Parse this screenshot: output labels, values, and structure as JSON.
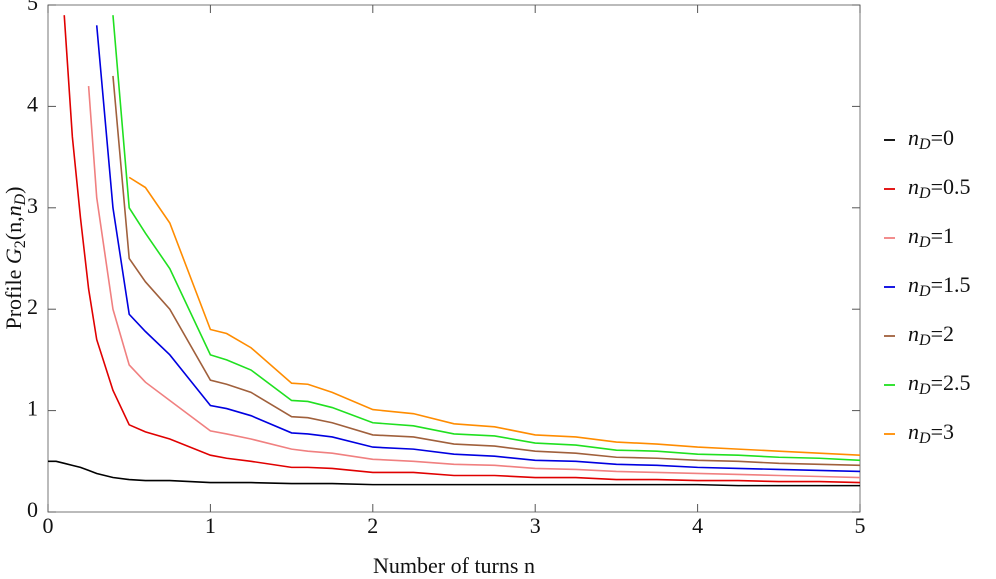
{
  "chart_data": {
    "type": "line",
    "xlabel": "Number of turns n",
    "ylabel": "Profile G2(n,nD)",
    "xlim": [
      0,
      5
    ],
    "ylim": [
      0,
      5
    ],
    "xticks": [
      0,
      1,
      2,
      3,
      4,
      5
    ],
    "yticks": [
      0,
      1,
      2,
      3,
      4,
      5
    ],
    "grid": false,
    "legend": "right",
    "x": [
      0,
      0.05,
      0.1,
      0.15,
      0.2,
      0.25,
      0.3,
      0.4,
      0.5,
      0.6,
      0.75,
      1,
      1.1,
      1.25,
      1.5,
      1.6,
      1.75,
      2,
      2.25,
      2.5,
      2.75,
      3,
      3.25,
      3.5,
      3.75,
      4,
      4.25,
      4.5,
      4.75,
      5
    ],
    "series": [
      {
        "name": "nD=0",
        "color": "#000000",
        "values": [
          0.5,
          0.5,
          0.48,
          0.46,
          0.44,
          0.41,
          0.38,
          0.34,
          0.32,
          0.31,
          0.31,
          0.29,
          0.29,
          0.29,
          0.28,
          0.28,
          0.28,
          0.27,
          0.27,
          0.27,
          0.27,
          0.27,
          0.27,
          0.27,
          0.27,
          0.27,
          0.26,
          0.26,
          0.26,
          0.26
        ]
      },
      {
        "name": "nD=0.5",
        "color": "#e00000",
        "values": [
          null,
          null,
          4.9,
          3.7,
          2.9,
          2.2,
          1.7,
          1.2,
          0.86,
          0.79,
          0.72,
          0.56,
          0.53,
          0.5,
          0.44,
          0.44,
          0.43,
          0.39,
          0.39,
          0.36,
          0.36,
          0.34,
          0.34,
          0.32,
          0.32,
          0.31,
          0.31,
          0.3,
          0.3,
          0.29
        ]
      },
      {
        "name": "nD=1",
        "color": "#f08080",
        "values": [
          null,
          null,
          null,
          null,
          null,
          4.2,
          3.1,
          2.0,
          1.45,
          1.28,
          1.1,
          0.8,
          0.77,
          0.72,
          0.62,
          0.6,
          0.58,
          0.52,
          0.5,
          0.47,
          0.46,
          0.43,
          0.42,
          0.4,
          0.39,
          0.38,
          0.37,
          0.36,
          0.35,
          0.34
        ]
      },
      {
        "name": "nD=1.5",
        "color": "#0000e0",
        "values": [
          null,
          null,
          null,
          null,
          null,
          null,
          4.8,
          3.0,
          1.95,
          1.78,
          1.55,
          1.05,
          1.02,
          0.95,
          0.78,
          0.77,
          0.74,
          0.64,
          0.62,
          0.57,
          0.55,
          0.51,
          0.5,
          0.47,
          0.46,
          0.44,
          0.43,
          0.42,
          0.41,
          0.4
        ]
      },
      {
        "name": "nD=2",
        "color": "#a0603c",
        "values": [
          null,
          null,
          null,
          null,
          null,
          null,
          null,
          4.3,
          2.5,
          2.27,
          2.0,
          1.3,
          1.26,
          1.18,
          0.94,
          0.93,
          0.88,
          0.76,
          0.74,
          0.67,
          0.65,
          0.6,
          0.58,
          0.54,
          0.53,
          0.51,
          0.5,
          0.48,
          0.47,
          0.46
        ]
      },
      {
        "name": "nD=2.5",
        "color": "#20e020",
        "values": [
          null,
          null,
          null,
          null,
          null,
          null,
          null,
          4.9,
          3.0,
          2.75,
          2.4,
          1.55,
          1.5,
          1.4,
          1.1,
          1.09,
          1.03,
          0.88,
          0.85,
          0.77,
          0.75,
          0.68,
          0.66,
          0.61,
          0.6,
          0.57,
          0.56,
          0.54,
          0.53,
          0.51
        ]
      },
      {
        "name": "nD=3",
        "color": "#ff8c00",
        "values": [
          null,
          null,
          null,
          null,
          null,
          null,
          null,
          null,
          3.3,
          3.2,
          2.85,
          1.8,
          1.76,
          1.62,
          1.27,
          1.26,
          1.18,
          1.01,
          0.97,
          0.87,
          0.84,
          0.76,
          0.74,
          0.69,
          0.67,
          0.64,
          0.62,
          0.6,
          0.58,
          0.56
        ]
      }
    ]
  }
}
